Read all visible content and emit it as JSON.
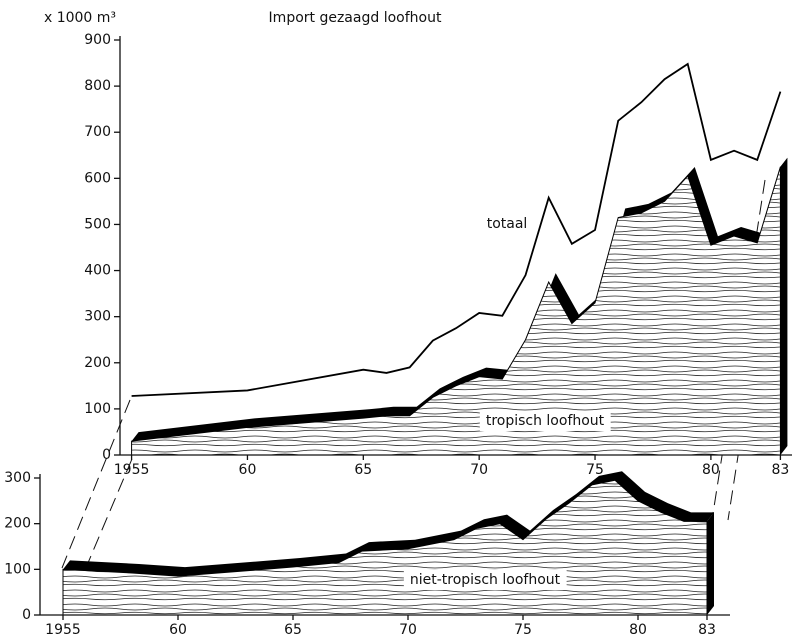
{
  "chart_data": [
    {
      "type": "line",
      "title": "Import gezaagd loofhout",
      "ylabel": "x 1000 m³",
      "x": [
        1955,
        1960,
        1965,
        1966,
        1967,
        1968,
        1969,
        1970,
        1971,
        1972,
        1973,
        1974,
        1975,
        1976,
        1977,
        1978,
        1979,
        1980,
        1981,
        1982,
        1983
      ],
      "series": [
        {
          "name": "totaal",
          "type": "line",
          "color": "#000000",
          "values": [
            128,
            140,
            185,
            178,
            190,
            248,
            275,
            308,
            302,
            390,
            558,
            458,
            488,
            725,
            765,
            815,
            848,
            640,
            660,
            640,
            788
          ]
        },
        {
          "name": "tropisch loofhout",
          "type": "area",
          "color": "#000000",
          "values": [
            30,
            60,
            80,
            85,
            85,
            125,
            150,
            170,
            165,
            250,
            375,
            285,
            330,
            515,
            525,
            550,
            605,
            455,
            475,
            460,
            625
          ]
        }
      ],
      "xlim": [
        1954.5,
        1983.5
      ],
      "ylim": [
        0,
        900
      ],
      "xticks": [
        1955,
        {
          "value": 1960,
          "label": "60"
        },
        {
          "value": 1965,
          "label": "65"
        },
        {
          "value": 1970,
          "label": "70"
        },
        {
          "value": 1975,
          "label": "75"
        },
        {
          "value": 1980,
          "label": "80"
        },
        {
          "value": 1983,
          "label": "83"
        }
      ],
      "yticks": [
        0,
        100,
        200,
        300,
        400,
        500,
        600,
        700,
        800,
        900
      ]
    },
    {
      "type": "area",
      "x": [
        1955,
        1958,
        1960,
        1965,
        1967,
        1968,
        1970,
        1972,
        1973,
        1974,
        1975,
        1976,
        1977,
        1978,
        1979,
        1980,
        1981,
        1982,
        1983
      ],
      "series": [
        {
          "name": "niet-tropisch loofhout",
          "type": "area",
          "color": "#000000",
          "values": [
            100,
            92,
            85,
            105,
            115,
            140,
            145,
            165,
            190,
            200,
            165,
            210,
            245,
            285,
            295,
            250,
            225,
            205,
            205
          ]
        }
      ],
      "xlim": [
        1954,
        1984
      ],
      "ylim": [
        0,
        300
      ],
      "xticks": [
        1955,
        {
          "value": 1960,
          "label": "60"
        },
        {
          "value": 1965,
          "label": "65"
        },
        {
          "value": 1970,
          "label": "70"
        },
        {
          "value": 1975,
          "label": "75"
        },
        {
          "value": 1980,
          "label": "80"
        },
        {
          "value": 1983,
          "label": "83"
        }
      ],
      "yticks": [
        0,
        100,
        200,
        300
      ]
    }
  ]
}
